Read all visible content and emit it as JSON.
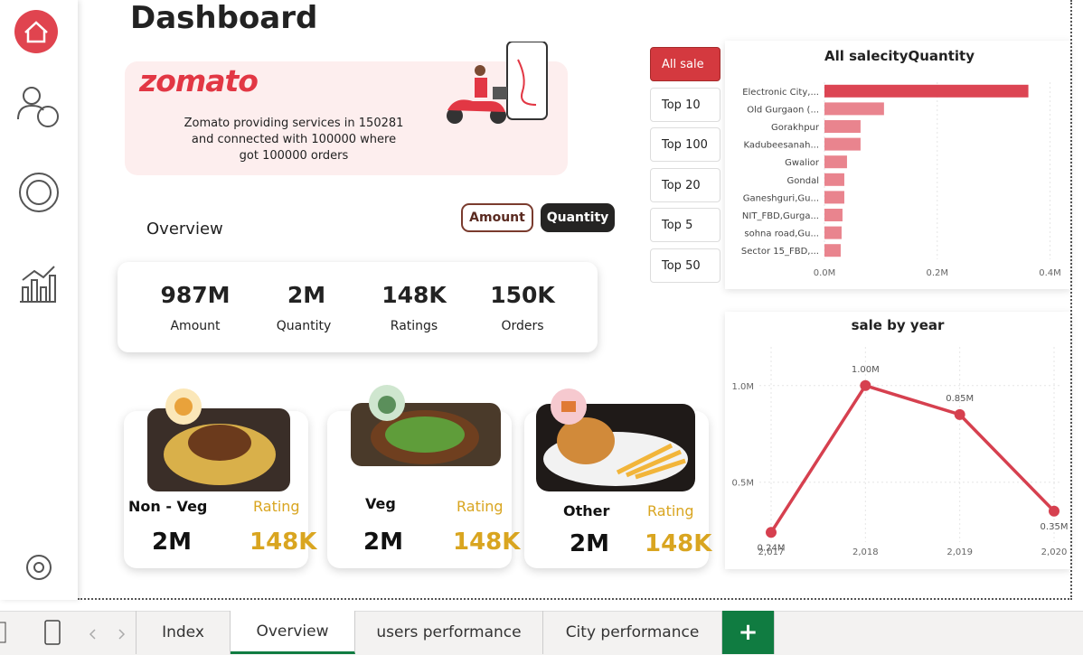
{
  "header": {
    "title": "Dashboard"
  },
  "banner": {
    "brand": "zomato",
    "text": "Zomato providing services in 150281 and connected with 100000 where got 100000 orders"
  },
  "overview": {
    "title": "Overview",
    "toggles": [
      "Amount",
      "Quantity"
    ],
    "kpis": [
      {
        "value": "987M",
        "label": "Amount"
      },
      {
        "value": "2M",
        "label": "Quantity"
      },
      {
        "value": "148K",
        "label": "Ratings"
      },
      {
        "value": "150K",
        "label": "Orders"
      }
    ]
  },
  "filters": [
    "All sale",
    "Top 10",
    "Top 100",
    "Top 20",
    "Top 5",
    "Top 50"
  ],
  "food_cards": [
    {
      "name": "Non - Veg",
      "rating_label": "Rating",
      "quantity": "2M",
      "rating": "148K"
    },
    {
      "name": "Veg",
      "rating_label": "Rating",
      "quantity": "2M",
      "rating": "148K"
    },
    {
      "name": "Other",
      "rating_label": "Rating",
      "quantity": "2M",
      "rating": "148K"
    }
  ],
  "tabs": [
    "Index",
    "Overview",
    "users performance",
    "City performance",
    "+"
  ],
  "chart_data": [
    {
      "type": "bar",
      "orientation": "horizontal",
      "title": "All salecityQuantity",
      "categories": [
        "Electronic City,...",
        "Old Gurgaon (...",
        "Gorakhpur",
        "Kadubeesanah...",
        "Gwalior",
        "Gondal",
        "Ganeshguri,Gu...",
        "NIT_FBD,Gurga...",
        "sohna road,Gu...",
        "Sector 15_FBD,..."
      ],
      "values": [
        361600,
        105600,
        64000,
        64000,
        40000,
        35200,
        35200,
        32000,
        30400,
        28800
      ],
      "colors": [
        "#dc4553",
        "#e9848e",
        "#e9848e",
        "#e9848e",
        "#e9848e",
        "#e9848e",
        "#e9848e",
        "#e9848e",
        "#e9848e",
        "#e9848e"
      ],
      "xlim": [
        0,
        420000
      ],
      "xticks": [
        {
          "value": 0,
          "label": "0.0M"
        },
        {
          "value": 200000,
          "label": "0.2M"
        },
        {
          "value": 400000,
          "label": "0.4M"
        }
      ],
      "grid": true
    },
    {
      "type": "line",
      "title": "sale by year",
      "x": [
        2017,
        2018,
        2019,
        2020
      ],
      "values": [
        240000,
        1000000,
        850000,
        350000
      ],
      "value_labels": [
        "0.24M",
        "1.00M",
        "0.85M",
        "0.35M"
      ],
      "color": "#d6404f",
      "xlim": [
        2017,
        2020
      ],
      "xticks": [
        {
          "value": 2017,
          "label": "2,017"
        },
        {
          "value": 2018,
          "label": "2,018"
        },
        {
          "value": 2019,
          "label": "2,019"
        },
        {
          "value": 2020,
          "label": "2,020"
        }
      ],
      "ylim": [
        190000,
        1200000
      ],
      "yticks": [
        {
          "value": 500000,
          "label": "0.5M"
        },
        {
          "value": 1000000,
          "label": "1.0M"
        }
      ],
      "grid": true
    }
  ]
}
